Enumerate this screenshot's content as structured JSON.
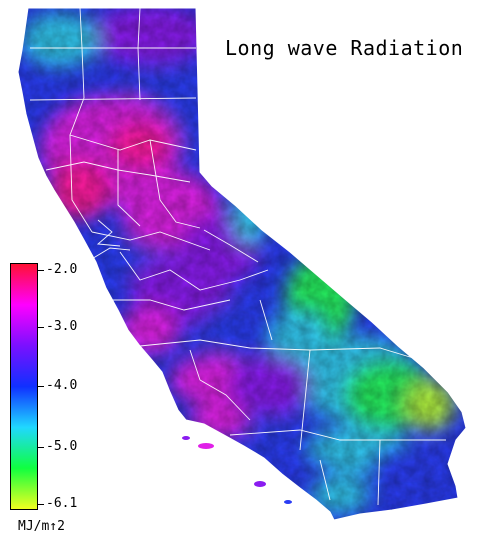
{
  "title": "Long wave Radiation",
  "colorbar": {
    "ticks": [
      "-2.0",
      "-3.0",
      "-4.0",
      "-5.0",
      "-6.1"
    ],
    "units": "MJ/m↑2",
    "stops": [
      "#ff1133",
      "#ff00ff",
      "#7a10ff",
      "#1030ff",
      "#20d8ff",
      "#10ff40",
      "#f0ff20"
    ]
  },
  "map": {
    "region": "California",
    "colors": {
      "ocean": "#ffffff",
      "magenta": "#e020e8",
      "hotpink": "#ff1aa0",
      "purple": "#8a1cf0",
      "blue": "#2a3cf4",
      "cyan": "#30c8f0",
      "green": "#28f060",
      "yellowgreen": "#b0f040",
      "border": "#ffffff"
    }
  }
}
